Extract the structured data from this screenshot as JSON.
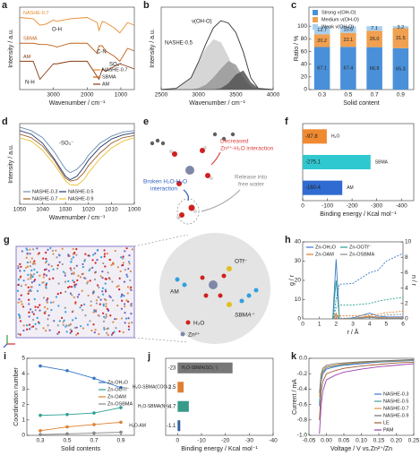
{
  "chart_data": [
    {
      "type": "line",
      "label": "a",
      "xlabel": "Wavenumber / cm⁻¹",
      "ylabel": "Intensity / a.u.",
      "xlim": [
        4000,
        600
      ],
      "xticks": [
        3000,
        2000,
        1000
      ],
      "ylim": [
        0.8,
        4
      ],
      "legend": "inline",
      "x": [
        4000,
        3600,
        3400,
        3200,
        3000,
        2900,
        2500,
        2000,
        1700,
        1650,
        1550,
        1450,
        1200,
        1030,
        800,
        600
      ],
      "series": [
        {
          "name": "NASHE-0.7",
          "color": "#e88a2a",
          "values": [
            3.6,
            3.55,
            3.3,
            3.35,
            3.5,
            3.45,
            3.55,
            3.6,
            3.4,
            3.1,
            3.45,
            3.4,
            3.2,
            3.0,
            3.4,
            3.3
          ]
        },
        {
          "name": "SBMA",
          "color": "#c06018",
          "values": [
            2.6,
            2.6,
            2.55,
            2.55,
            2.5,
            2.45,
            2.6,
            2.6,
            2.2,
            2.5,
            2.5,
            2.3,
            2.1,
            1.9,
            2.4,
            2.3
          ]
        },
        {
          "name": "AM",
          "color": "#8a3a10",
          "values": [
            1.9,
            1.9,
            1.2,
            1.5,
            1.8,
            1.8,
            1.9,
            1.9,
            1.3,
            1.2,
            1.6,
            1.5,
            1.7,
            1.8,
            1.7,
            1.6
          ]
        }
      ],
      "annotations": [
        "O-H",
        "C-N",
        "SO₃⁻",
        "N-H"
      ]
    },
    {
      "type": "area",
      "label": "b",
      "xlabel": "Wavenumber / cm⁻¹",
      "ylabel": "Intensity / a.u.",
      "xlim": [
        2500,
        4000
      ],
      "xticks": [
        2500,
        3000,
        3500,
        4000
      ],
      "ylim": [
        0,
        1.4
      ],
      "x": [
        2500,
        2700,
        2900,
        3000,
        3100,
        3200,
        3300,
        3400,
        3500,
        3600,
        3700,
        3800,
        4000
      ],
      "series": [
        {
          "color": "#cfcfcf",
          "fill": true,
          "values": [
            0,
            0.02,
            0.2,
            0.45,
            0.7,
            0.85,
            0.8,
            0.55,
            0.3,
            0.12,
            0.03,
            0,
            0
          ]
        },
        {
          "color": "#999999",
          "fill": true,
          "values": [
            0,
            0,
            0,
            0.02,
            0.08,
            0.2,
            0.35,
            0.48,
            0.42,
            0.2,
            0.05,
            0,
            0
          ]
        },
        {
          "color": "#555555",
          "fill": true,
          "values": [
            0,
            0,
            0,
            0,
            0,
            0,
            0.02,
            0.1,
            0.25,
            0.32,
            0.12,
            0.02,
            0
          ]
        },
        {
          "color": "#333333",
          "fill": false,
          "values": [
            0,
            0.02,
            0.2,
            0.47,
            0.78,
            1.05,
            1.17,
            1.13,
            0.97,
            0.64,
            0.2,
            0.02,
            0
          ]
        }
      ],
      "annotations": [
        "NASHE-0.5",
        "ν(OH-O)"
      ]
    },
    {
      "type": "bar",
      "label": "c",
      "xlabel": "Solid content",
      "ylabel": "Ratio / %",
      "categories": [
        "0.3",
        "0.5",
        "0.7",
        "0.9"
      ],
      "ylim": [
        0,
        130
      ],
      "yticks": [
        0,
        20,
        40,
        60,
        80,
        100
      ],
      "legend": "upper-left",
      "series": [
        {
          "name": "Strong ν(OH-O)",
          "color": "#4a90d9",
          "values": [
            67.1,
            67.4,
            66.9,
            65.3
          ],
          "value_labels": [
            "67.1",
            "67.4",
            "66.9",
            "65.3"
          ]
        },
        {
          "name": "Medium ν(OH-O)",
          "color": "#f0a050",
          "values": [
            20.2,
            22.1,
            26.0,
            31.5
          ],
          "value_labels": [
            "20.2",
            "22.1",
            "26.0",
            "31.5"
          ]
        },
        {
          "name": "Weak ν(OH-O)",
          "color": "#a8d0f0",
          "values": [
            12.7,
            10.5,
            7.1,
            3.2
          ],
          "value_labels": [
            "12.7",
            "10.5",
            "7.1",
            "3.2"
          ]
        }
      ]
    },
    {
      "type": "line",
      "label": "d",
      "xlabel": "Wavenumber / cm⁻¹",
      "ylabel": "Intensity / a.u.",
      "xlim": [
        1050,
        1000
      ],
      "xticks": [
        1050,
        1040,
        1030,
        1020,
        1010,
        1000
      ],
      "ylim": [
        -0.15,
        1
      ],
      "legend": "lower-left",
      "x": [
        1050,
        1045,
        1040,
        1035,
        1032,
        1030,
        1028,
        1025,
        1022,
        1020,
        1015,
        1010,
        1005,
        1000
      ],
      "series": [
        {
          "name": "NASHE-0.3",
          "color": "#6a8ab0",
          "values": [
            0.95,
            0.9,
            0.8,
            0.6,
            0.45,
            0.35,
            0.3,
            0.35,
            0.45,
            0.55,
            0.72,
            0.82,
            0.88,
            0.9
          ]
        },
        {
          "name": "NASHE-0.5",
          "color": "#1f3a6a",
          "values": [
            0.9,
            0.85,
            0.72,
            0.5,
            0.35,
            0.25,
            0.2,
            0.25,
            0.38,
            0.48,
            0.66,
            0.78,
            0.84,
            0.87
          ]
        },
        {
          "name": "NASHE-0.7",
          "color": "#a06030",
          "values": [
            0.85,
            0.8,
            0.68,
            0.48,
            0.32,
            0.22,
            0.18,
            0.2,
            0.3,
            0.4,
            0.58,
            0.72,
            0.8,
            0.83
          ]
        },
        {
          "name": "NASHE-0.9",
          "color": "#e8c030",
          "values": [
            0.8,
            0.75,
            0.62,
            0.42,
            0.28,
            0.18,
            0.13,
            0.12,
            0.2,
            0.3,
            0.5,
            0.65,
            0.75,
            0.8
          ]
        }
      ],
      "annotations": [
        "-SO₃⁻"
      ]
    },
    {
      "type": "barh",
      "label": "f",
      "xlabel": "Binding energy / Kcal mol⁻¹",
      "categories": [
        "H₂O",
        "SBMA",
        "AM"
      ],
      "values": [
        -97.8,
        -275.1,
        -160.4
      ],
      "colors": [
        "#f08a30",
        "#30c8d0",
        "#2f6bd0"
      ],
      "xlim": [
        0,
        -450
      ],
      "xticks": [
        0,
        -100,
        -200,
        -300,
        -400
      ]
    },
    {
      "type": "line",
      "label": "h",
      "xlabel": "r / Å",
      "ylabel": "g / r",
      "y2label": "n / r",
      "xlim": [
        0,
        6
      ],
      "xticks": [
        0,
        1,
        2,
        3,
        4,
        5,
        6
      ],
      "ylim": [
        0,
        40
      ],
      "yticks": [
        0,
        10,
        20,
        30,
        40
      ],
      "y2lim": [
        0,
        10
      ],
      "y2ticks": [
        0,
        2,
        4,
        6,
        8,
        10
      ],
      "legend": "upper-left",
      "x": [
        0,
        1.8,
        2.0,
        2.2,
        3,
        4,
        4.5,
        5,
        6
      ],
      "series": [
        {
          "name": "Zn-OH₂O",
          "color": "#3a78c8",
          "values": [
            0,
            0,
            31,
            0,
            0.5,
            3,
            1.5,
            1,
            1
          ]
        },
        {
          "name": "Zn-OOTf⁻",
          "color": "#2aa090",
          "values": [
            0,
            0,
            20,
            0,
            0,
            1,
            0.5,
            0.5,
            0.3
          ]
        },
        {
          "name": "Zn-OAM",
          "color": "#e08030",
          "values": [
            0,
            0,
            3,
            0,
            0.2,
            1.5,
            0.8,
            0.6,
            0.5
          ]
        },
        {
          "name": "Zn-OSBMA",
          "color": "#888888",
          "values": [
            0,
            0,
            2,
            0,
            0.1,
            0.8,
            0.5,
            0.4,
            0.3
          ]
        },
        {
          "color": "#3a78c8",
          "axis": "y2",
          "dashed": true,
          "values": [
            0,
            0,
            2.5,
            4.5,
            4.6,
            6,
            6.3,
            7.5,
            8.5
          ]
        },
        {
          "color": "#2aa090",
          "axis": "y2",
          "dashed": true,
          "values": [
            0,
            0,
            1.5,
            1.8,
            1.8,
            2,
            2.3,
            2.5,
            2.8
          ]
        },
        {
          "color": "#e08030",
          "axis": "y2",
          "dashed": true,
          "values": [
            0,
            0,
            0.3,
            0.4,
            0.4,
            0.5,
            0.6,
            0.8,
            1
          ]
        },
        {
          "color": "#888888",
          "axis": "y2",
          "dashed": true,
          "values": [
            0,
            0,
            0.1,
            0.1,
            0.1,
            0.2,
            0.3,
            0.5,
            0.6
          ]
        }
      ]
    },
    {
      "type": "line",
      "label": "i",
      "xlabel": "Solid contents",
      "ylabel": "Coordination number",
      "markers": true,
      "xlim": [
        0.2,
        1.0
      ],
      "xticks": [
        0.3,
        0.5,
        0.7,
        0.9
      ],
      "ylim": [
        0,
        5
      ],
      "yticks": [
        0,
        1,
        2,
        3,
        4,
        5
      ],
      "legend": "center-right",
      "x": [
        0.3,
        0.5,
        0.7,
        0.9
      ],
      "series": [
        {
          "name": "Zn-OH₂O",
          "color": "#3a78c8",
          "values": [
            4.5,
            4.2,
            3.7,
            3.1
          ]
        },
        {
          "name": "Zn-OOTf⁻",
          "color": "#2aa090",
          "values": [
            1.3,
            1.35,
            1.45,
            1.8
          ]
        },
        {
          "name": "Zn-OAM",
          "color": "#e08030",
          "values": [
            0.3,
            0.55,
            0.7,
            0.85
          ]
        },
        {
          "name": "Zn-OSBMA",
          "color": "#888888",
          "values": [
            0.05,
            0.1,
            0.15,
            0.2
          ]
        }
      ]
    },
    {
      "type": "barh",
      "label": "j",
      "xlabel": "Binding energy / Kcal mol⁻¹",
      "categories": [
        "H₂O-SBMA(SO₃⁻)",
        "H₂O-SBMA(COO⁻)",
        "H₂O-SBMA(N⁺)",
        "H₂O-AM"
      ],
      "values": [
        -23,
        -2.5,
        -4.7,
        -1.1
      ],
      "colors": [
        "#777777",
        "#e08030",
        "#3a9a8a",
        "#3060a0"
      ],
      "xlim": [
        5,
        -40
      ],
      "xticks": [
        0,
        -10,
        -20,
        -30,
        -40
      ]
    },
    {
      "type": "line",
      "label": "k",
      "xlabel": "Voltage / V vs.Zn²⁺/Zn",
      "ylabel": "Current / mA",
      "legend": "lower-right",
      "xlim": [
        -0.05,
        0.25
      ],
      "xticks": [
        {
          "value": -0.05,
          "label": "-0.05"
        },
        {
          "value": 0,
          "label": "0.00"
        },
        {
          "value": 0.05,
          "label": "0.05"
        },
        {
          "value": 0.1,
          "label": "0.10"
        },
        {
          "value": 0.15,
          "label": "0.15"
        },
        {
          "value": 0.2,
          "label": "0.20"
        },
        {
          "value": 0.25,
          "label": "0.25"
        }
      ],
      "ylim": [
        -1,
        0
      ],
      "yticks": [
        {
          "value": -1,
          "label": "-1.0"
        },
        {
          "value": -0.8,
          "label": "-0.8"
        },
        {
          "value": -0.6,
          "label": "-0.6"
        },
        {
          "value": -0.4,
          "label": "-0.4"
        },
        {
          "value": -0.2,
          "label": "-0.2"
        },
        {
          "value": 0,
          "label": "0.0"
        }
      ],
      "x": [
        -0.02,
        -0.015,
        -0.01,
        0,
        0.025,
        0.05,
        0.1,
        0.15,
        0.2,
        0.25
      ],
      "series": [
        {
          "name": "NASHE-0.3",
          "color": "#4a6fd0",
          "values": [
            -0.62,
            -0.3,
            -0.2,
            -0.14,
            -0.11,
            -0.09,
            -0.07,
            -0.05,
            -0.04,
            -0.03
          ]
        },
        {
          "name": "NASHE-0.5",
          "color": "#40a0a0",
          "values": [
            -0.58,
            -0.28,
            -0.18,
            -0.12,
            -0.1,
            -0.08,
            -0.06,
            -0.045,
            -0.035,
            -0.025
          ]
        },
        {
          "name": "NASHE-0.7",
          "color": "#e09040",
          "values": [
            -0.5,
            -0.24,
            -0.16,
            -0.11,
            -0.09,
            -0.07,
            -0.055,
            -0.04,
            -0.03,
            -0.02
          ]
        },
        {
          "name": "NASHE-0.9",
          "color": "#707070",
          "values": [
            -0.45,
            -0.2,
            -0.13,
            -0.09,
            -0.07,
            -0.06,
            -0.045,
            -0.035,
            -0.025,
            -0.015
          ]
        },
        {
          "name": "LE",
          "color": "#a05a30",
          "values": [
            -0.8,
            -0.42,
            -0.3,
            -0.2,
            -0.16,
            -0.13,
            -0.1,
            -0.08,
            -0.06,
            -0.05
          ]
        },
        {
          "name": "PAM",
          "color": "#9a40b0",
          "values": [
            -0.98,
            -0.6,
            -0.42,
            -0.28,
            -0.22,
            -0.18,
            -0.14,
            -0.11,
            -0.09,
            -0.07
          ]
        }
      ]
    }
  ],
  "diagrams": {
    "e": {
      "label": "e",
      "texts": [
        "Decreased",
        "Zn²⁺-H₂O interaction",
        "Broken H₂O-H₂O",
        "interaction",
        "Release into",
        "free water"
      ]
    },
    "g": {
      "label": "g",
      "texts": [
        "OTf⁻",
        "AM",
        "SBMA⁺",
        "H₂O",
        "Zn²⁺"
      ]
    }
  }
}
